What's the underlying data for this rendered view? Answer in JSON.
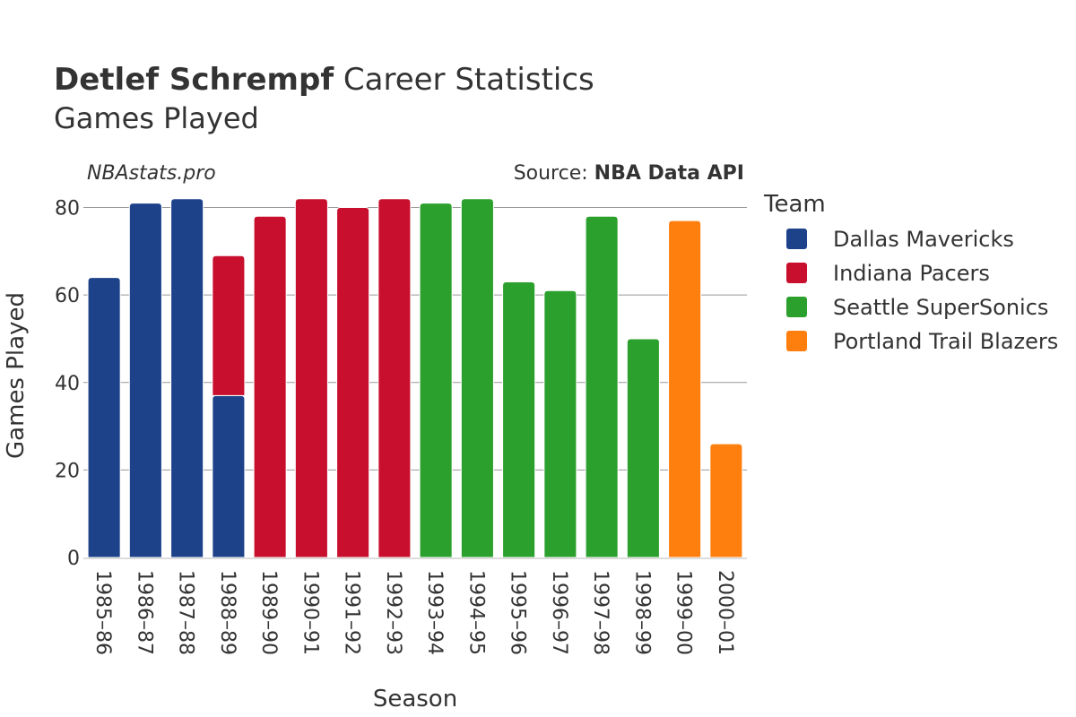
{
  "title": {
    "player": "Detlef Schrempf",
    "rest": " Career Statistics",
    "subtitle": "Games Played"
  },
  "watermark": "NBAstats.pro",
  "source": {
    "prefix": "Source: ",
    "name": "NBA Data API"
  },
  "legend_title": "Team",
  "chart_data": {
    "type": "bar",
    "stacked": true,
    "xlabel": "Season",
    "ylabel": "Games Played",
    "ylim": [
      0,
      84
    ],
    "yticks": [
      0,
      20,
      40,
      60,
      80
    ],
    "grid": true,
    "legend_position": "right",
    "categories": [
      "1985–86",
      "1986–87",
      "1987–88",
      "1988–89",
      "1989–90",
      "1990–91",
      "1991–92",
      "1992–93",
      "1993–94",
      "1994–95",
      "1995–96",
      "1996–97",
      "1997–98",
      "1998–99",
      "1999–00",
      "2000–01"
    ],
    "series": [
      {
        "name": "Dallas Mavericks",
        "color": "#1d428a",
        "values": [
          64,
          81,
          82,
          37,
          0,
          0,
          0,
          0,
          0,
          0,
          0,
          0,
          0,
          0,
          0,
          0
        ]
      },
      {
        "name": "Indiana Pacers",
        "color": "#c8102e",
        "values": [
          0,
          0,
          0,
          32,
          78,
          82,
          80,
          82,
          0,
          0,
          0,
          0,
          0,
          0,
          0,
          0
        ]
      },
      {
        "name": "Seattle SuperSonics",
        "color": "#2ca02c",
        "values": [
          0,
          0,
          0,
          0,
          0,
          0,
          0,
          0,
          81,
          82,
          63,
          61,
          78,
          50,
          0,
          0
        ]
      },
      {
        "name": "Portland Trail Blazers",
        "color": "#ff7f0e",
        "values": [
          0,
          0,
          0,
          0,
          0,
          0,
          0,
          0,
          0,
          0,
          0,
          0,
          0,
          0,
          77,
          26
        ]
      }
    ]
  }
}
